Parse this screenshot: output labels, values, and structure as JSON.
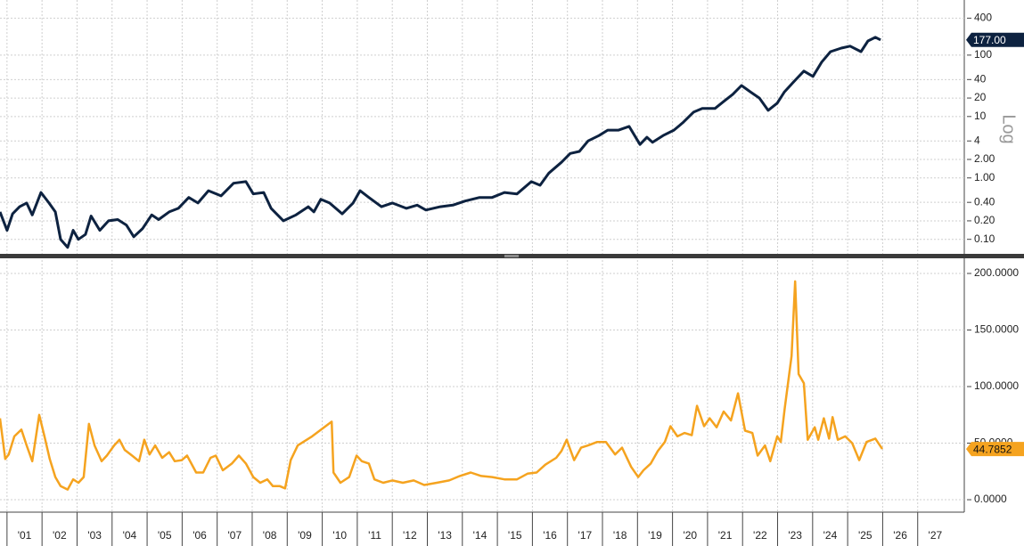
{
  "chart_data": [
    {
      "type": "line",
      "log_scale": true,
      "grid": true,
      "color": "#0d2240",
      "y_label": "Log",
      "xlim": [
        2000.8,
        2028.33
      ],
      "ylim": [
        0.058,
        790
      ],
      "yticks": [
        {
          "value": 0.1,
          "label": "0.10"
        },
        {
          "value": 0.2,
          "label": "0.20"
        },
        {
          "value": 0.4,
          "label": "0.40"
        },
        {
          "value": 1,
          "label": "1.00"
        },
        {
          "value": 2,
          "label": "2.00"
        },
        4,
        10,
        20,
        40,
        100,
        400
      ],
      "x": [
        2000.8,
        2001.0,
        2001.16,
        2001.36,
        2001.56,
        2001.72,
        2001.97,
        2002.2,
        2002.38,
        2002.53,
        2002.73,
        2002.89,
        2003.04,
        2003.24,
        2003.4,
        2003.65,
        2003.9,
        2004.16,
        2004.41,
        2004.62,
        2004.87,
        2005.13,
        2005.33,
        2005.63,
        2005.89,
        2006.19,
        2006.45,
        2006.75,
        2007.11,
        2007.47,
        2007.82,
        2008.03,
        2008.33,
        2008.54,
        2008.89,
        2009.25,
        2009.6,
        2009.76,
        2009.96,
        2010.21,
        2010.57,
        2010.88,
        2011.08,
        2011.33,
        2011.69,
        2012.0,
        2012.4,
        2012.71,
        2012.96,
        2013.37,
        2013.73,
        2014.08,
        2014.49,
        2014.85,
        2015.2,
        2015.56,
        2015.97,
        2016.22,
        2016.47,
        2016.83,
        2017.08,
        2017.34,
        2017.59,
        2017.9,
        2018.15,
        2018.46,
        2018.76,
        2019.07,
        2019.27,
        2019.43,
        2019.73,
        2020.04,
        2020.29,
        2020.6,
        2020.85,
        2021.21,
        2021.46,
        2021.72,
        2021.97,
        2022.23,
        2022.48,
        2022.73,
        2022.99,
        2023.19,
        2023.5,
        2023.75,
        2024.01,
        2024.26,
        2024.51,
        2024.82,
        2025.07,
        2025.38,
        2025.58,
        2025.79,
        2025.94
      ],
      "values": [
        0.28,
        0.14,
        0.26,
        0.34,
        0.39,
        0.25,
        0.58,
        0.39,
        0.28,
        0.1,
        0.074,
        0.14,
        0.1,
        0.12,
        0.24,
        0.14,
        0.2,
        0.21,
        0.17,
        0.11,
        0.15,
        0.25,
        0.21,
        0.28,
        0.32,
        0.48,
        0.39,
        0.62,
        0.51,
        0.82,
        0.87,
        0.55,
        0.58,
        0.32,
        0.2,
        0.25,
        0.34,
        0.28,
        0.45,
        0.39,
        0.26,
        0.39,
        0.62,
        0.48,
        0.34,
        0.39,
        0.32,
        0.36,
        0.3,
        0.34,
        0.36,
        0.42,
        0.48,
        0.48,
        0.58,
        0.55,
        0.87,
        0.76,
        1.2,
        1.8,
        2.5,
        2.7,
        4.0,
        4.9,
        6.0,
        6.0,
        6.9,
        3.5,
        4.6,
        3.8,
        4.9,
        6.0,
        7.9,
        11.8,
        13.5,
        13.5,
        17.6,
        23,
        32,
        25,
        20,
        12.6,
        16.5,
        25,
        39,
        55,
        45,
        77,
        114,
        130,
        140,
        114,
        170,
        195,
        177
      ],
      "annotations": [
        {
          "value": 177,
          "label": "177.00"
        }
      ]
    },
    {
      "type": "line",
      "log_scale": false,
      "grid": true,
      "color": "#f5a31f",
      "xlim": [
        2000.8,
        2028.33
      ],
      "ylim": [
        -11,
        211.8
      ],
      "xticks": [
        {
          "value": 2001,
          "label": "'01"
        },
        {
          "value": 2002,
          "label": "'02"
        },
        {
          "value": 2003,
          "label": "'03"
        },
        {
          "value": 2004,
          "label": "'04"
        },
        {
          "value": 2005,
          "label": "'05"
        },
        {
          "value": 2006,
          "label": "'06"
        },
        {
          "value": 2007,
          "label": "'07"
        },
        {
          "value": 2008,
          "label": "'08"
        },
        {
          "value": 2009,
          "label": "'09"
        },
        {
          "value": 2010,
          "label": "'10"
        },
        {
          "value": 2011,
          "label": "'11"
        },
        {
          "value": 2012,
          "label": "'12"
        },
        {
          "value": 2013,
          "label": "'13"
        },
        {
          "value": 2014,
          "label": "'14"
        },
        {
          "value": 2015,
          "label": "'15"
        },
        {
          "value": 2016,
          "label": "'16"
        },
        {
          "value": 2017,
          "label": "'17"
        },
        {
          "value": 2018,
          "label": "'18"
        },
        {
          "value": 2019,
          "label": "'19"
        },
        {
          "value": 2020,
          "label": "'20"
        },
        {
          "value": 2021,
          "label": "'21"
        },
        {
          "value": 2022,
          "label": "'22"
        },
        {
          "value": 2023,
          "label": "'23"
        },
        {
          "value": 2024,
          "label": "'24"
        },
        {
          "value": 2025,
          "label": "'25"
        },
        {
          "value": 2026,
          "label": "'26"
        },
        {
          "value": 2027,
          "label": "'27"
        }
      ],
      "yticks": [
        {
          "value": 0,
          "label": "0.0000"
        },
        {
          "value": 50,
          "label": "50.0000"
        },
        {
          "value": 100,
          "label": "100.0000"
        },
        {
          "value": 150,
          "label": "150.0000"
        },
        {
          "value": 200,
          "label": "200.0000"
        }
      ],
      "x": [
        2000.8,
        2000.95,
        2001.05,
        2001.21,
        2001.41,
        2001.56,
        2001.72,
        2001.92,
        2002.07,
        2002.22,
        2002.38,
        2002.53,
        2002.73,
        2002.89,
        2003.04,
        2003.19,
        2003.34,
        2003.5,
        2003.7,
        2003.85,
        2004.06,
        2004.21,
        2004.36,
        2004.57,
        2004.77,
        2004.92,
        2005.07,
        2005.23,
        2005.43,
        2005.63,
        2005.79,
        2005.99,
        2006.14,
        2006.4,
        2006.6,
        2006.81,
        2006.96,
        2007.16,
        2007.42,
        2007.62,
        2007.82,
        2008.03,
        2008.23,
        2008.43,
        2008.59,
        2008.79,
        2008.94,
        2009.1,
        2009.3,
        2009.71,
        2010.27,
        2010.32,
        2010.52,
        2010.77,
        2010.98,
        2011.13,
        2011.33,
        2011.49,
        2011.74,
        2012.0,
        2012.3,
        2012.61,
        2012.91,
        2013.27,
        2013.62,
        2013.93,
        2014.24,
        2014.54,
        2014.85,
        2015.2,
        2015.56,
        2015.86,
        2016.12,
        2016.37,
        2016.68,
        2016.83,
        2016.98,
        2017.19,
        2017.39,
        2017.59,
        2017.85,
        2018.1,
        2018.36,
        2018.56,
        2018.82,
        2019.02,
        2019.17,
        2019.38,
        2019.58,
        2019.78,
        2019.94,
        2020.14,
        2020.34,
        2020.55,
        2020.7,
        2020.9,
        2021.06,
        2021.26,
        2021.46,
        2021.67,
        2021.87,
        2022.07,
        2022.28,
        2022.43,
        2022.64,
        2022.79,
        2022.99,
        2023.09,
        2023.2,
        2023.4,
        2023.5,
        2023.6,
        2023.75,
        2023.86,
        2024.06,
        2024.16,
        2024.32,
        2024.47,
        2024.57,
        2024.72,
        2024.93,
        2025.13,
        2025.33,
        2025.54,
        2025.79,
        2025.99
      ],
      "values": [
        72,
        36,
        40,
        56,
        62,
        48,
        34,
        75,
        56,
        36,
        20,
        12,
        9,
        18,
        15,
        20,
        67,
        48,
        34,
        39,
        48,
        53,
        44,
        39,
        34,
        53,
        40,
        48,
        37,
        42,
        34,
        35,
        39,
        24,
        24,
        37,
        39,
        26,
        32,
        39,
        32,
        20,
        15,
        18,
        12,
        12,
        10,
        35,
        48,
        56,
        69,
        24,
        15,
        20,
        39,
        34,
        32,
        18,
        15,
        17,
        15,
        17,
        13,
        15,
        17,
        21,
        24,
        21,
        20,
        18,
        18,
        23,
        24,
        31,
        37,
        43,
        53,
        35,
        46,
        48,
        51,
        51,
        40,
        46,
        29,
        20,
        26,
        32,
        43,
        51,
        65,
        56,
        59,
        57,
        83,
        65,
        72,
        64,
        78,
        70,
        94,
        61,
        59,
        39,
        48,
        34,
        56,
        51,
        80,
        127,
        193,
        111,
        103,
        53,
        64,
        53,
        72,
        54,
        73,
        53,
        56,
        50,
        35,
        51,
        54,
        44.7852
      ],
      "annotations": [
        {
          "value": 44.7852,
          "label": "44.7852"
        }
      ]
    }
  ]
}
